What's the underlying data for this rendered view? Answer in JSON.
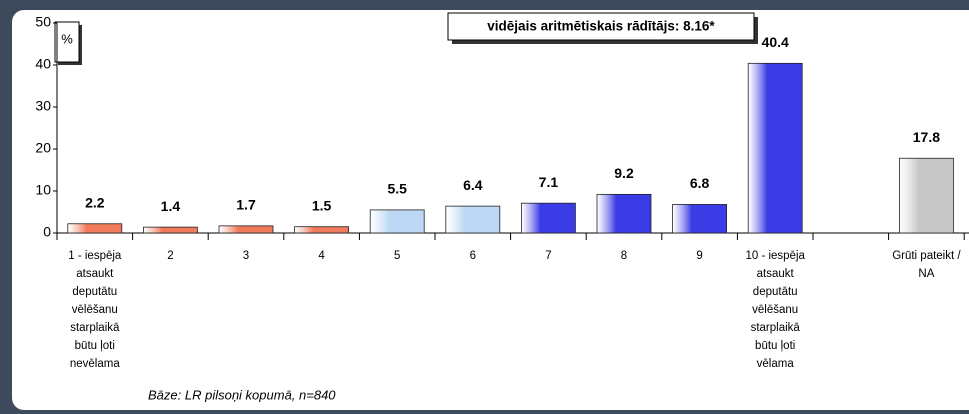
{
  "chart_data": {
    "type": "bar",
    "annotations": {
      "unit": "%",
      "mean": "vidējais aritmētiskais rādītājs: 8.16*",
      "base": "Bāze: LR pilsoņi kopumā, n=840"
    },
    "categories": [
      "1 - iespēja atsaukt deputātu vēlēšanu starplaikā būtu ļoti nevēlama",
      "2",
      "3",
      "4",
      "5",
      "6",
      "7",
      "8",
      "9",
      "10 - iespēja atsaukt deputātu vēlēšanu starplaikā būtu ļoti vēlama",
      null,
      "Grūti pateikt / NA"
    ],
    "values": [
      2.2,
      1.4,
      1.7,
      1.5,
      5.5,
      6.4,
      7.1,
      9.2,
      6.8,
      40.4,
      null,
      17.8
    ],
    "colors": [
      "#f07a5a",
      "#f07a5a",
      "#f07a5a",
      "#f07a5a",
      "#bcd8f4",
      "#bcd8f4",
      "#3c3ce6",
      "#3c3ce6",
      "#3c3ce6",
      "#3c3ce6",
      null,
      "#c8c8c8"
    ],
    "ylim": [
      0,
      50
    ],
    "yticks": [
      0,
      10,
      20,
      30,
      40,
      50
    ],
    "grid": false
  }
}
